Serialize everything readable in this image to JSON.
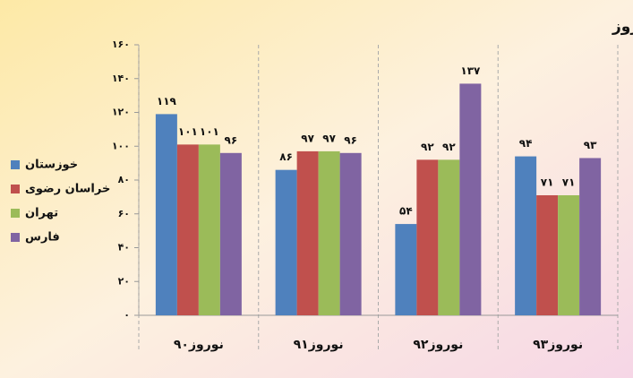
{
  "chart_data": {
    "type": "bar",
    "title": "استان‌های دارای بیشترین جانباخته حوادث ترافیکی در نوروز",
    "categories": [
      "نوروز۹۰",
      "نوروز۹۱",
      "نوروز۹۲",
      "نوروز۹۳"
    ],
    "series": [
      {
        "name": "خوزستان",
        "color": "#4f81bd",
        "values": [
          119,
          86,
          54,
          94
        ],
        "value_labels": [
          "۱۱۹",
          "۸۶",
          "۵۴",
          "۹۴"
        ]
      },
      {
        "name": "خراسان رضوی",
        "color": "#c0504d",
        "values": [
          101,
          97,
          92,
          71
        ],
        "value_labels": [
          "۱۰۱",
          "۹۷",
          "۹۲",
          "۷۱"
        ]
      },
      {
        "name": "تهران",
        "color": "#9bbb59",
        "values": [
          101,
          97,
          92,
          71
        ],
        "value_labels": [
          "۱۰۱",
          "۹۷",
          "۹۲",
          "۷۱"
        ]
      },
      {
        "name": "فارس",
        "color": "#8064a2",
        "values": [
          96,
          96,
          137,
          93
        ],
        "value_labels": [
          "۹۶",
          "۹۶",
          "۱۳۷",
          "۹۳"
        ]
      }
    ],
    "ylim": [
      0,
      160
    ],
    "yticks": [
      {
        "value": 0,
        "label": "۰"
      },
      {
        "value": 20,
        "label": "۲۰"
      },
      {
        "value": 40,
        "label": "۴۰"
      },
      {
        "value": 60,
        "label": "۶۰"
      },
      {
        "value": 80,
        "label": "۸۰"
      },
      {
        "value": 100,
        "label": "۱۰۰"
      },
      {
        "value": 120,
        "label": "۱۲۰"
      },
      {
        "value": 140,
        "label": "۱۴۰"
      },
      {
        "value": 160,
        "label": "۱۶۰"
      }
    ],
    "legend": "left"
  }
}
